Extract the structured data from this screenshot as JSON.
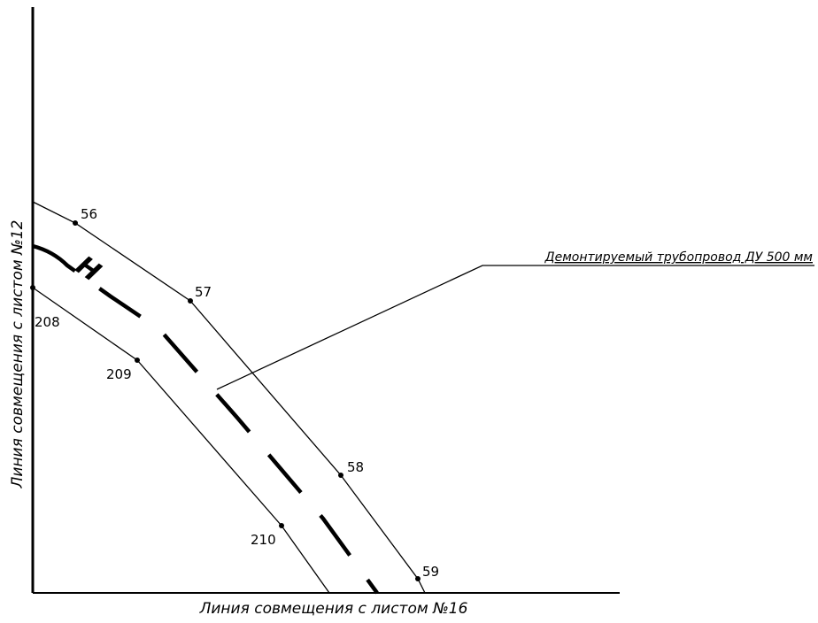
{
  "drawing": {
    "left_edge_label": "Линия совмещения с листом №12",
    "bottom_edge_label": "Линия совмещения с листом №16",
    "leader_label": "Демонтируемый трубопровод ДУ 500 мм",
    "pipe_marker": "Н",
    "upper_boundary_points": [
      "56",
      "57",
      "58",
      "59"
    ],
    "lower_boundary_points": [
      "208",
      "209",
      "210"
    ]
  }
}
